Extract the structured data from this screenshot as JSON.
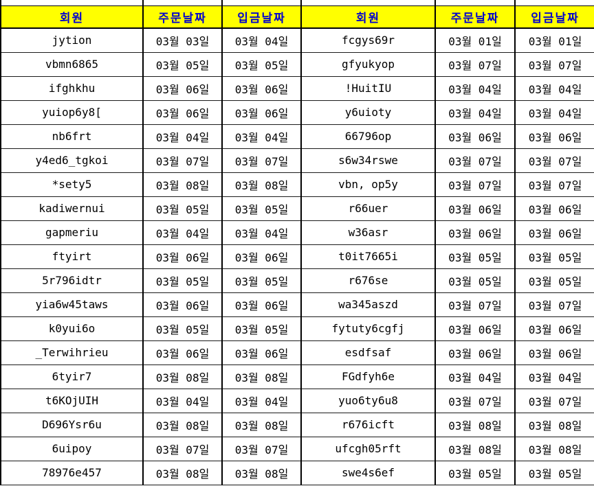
{
  "colors": {
    "header_bg": "#ffff00",
    "header_text": "#0000d0",
    "grid_border": "#000000",
    "cell_text": "#000000"
  },
  "table": {
    "columns": [
      {
        "key": "member_left",
        "label": "회원"
      },
      {
        "key": "order_left",
        "label": "주문날짜"
      },
      {
        "key": "deposit_left",
        "label": "입금날짜"
      },
      {
        "key": "member_right",
        "label": "회원"
      },
      {
        "key": "order_right",
        "label": "주문날짜"
      },
      {
        "key": "deposit_right",
        "label": "입금날짜"
      }
    ],
    "rows": [
      [
        "jytion",
        "03월 03일",
        "03월 04일",
        "fcgys69r",
        "03월 01일",
        "03월 01일"
      ],
      [
        "vbmn6865",
        "03월 05일",
        "03월 05일",
        "gfyukyop",
        "03월 07일",
        "03월 07일"
      ],
      [
        "ifghkhu",
        "03월 06일",
        "03월 06일",
        "!HuitIU",
        "03월 04일",
        "03월 04일"
      ],
      [
        "yuiop6y8[",
        "03월 06일",
        "03월 06일",
        "y6uioty",
        "03월 04일",
        "03월 04일"
      ],
      [
        "nb6frt",
        "03월 04일",
        "03월 04일",
        "66796op",
        "03월 06일",
        "03월 06일"
      ],
      [
        "y4ed6_tgkoi",
        "03월 07일",
        "03월 07일",
        "s6w34rswe",
        "03월 07일",
        "03월 07일"
      ],
      [
        "*sety5",
        "03월 08일",
        "03월 08일",
        "vbn, op5y",
        "03월 07일",
        "03월 07일"
      ],
      [
        "kadiwernui",
        "03월 05일",
        "03월 05일",
        "r66uer",
        "03월 06일",
        "03월 06일"
      ],
      [
        "gapmeriu",
        "03월 04일",
        "03월 04일",
        "w36asr",
        "03월 06일",
        "03월 06일"
      ],
      [
        "ftyirt",
        "03월 06일",
        "03월 06일",
        "t0it7665i",
        "03월 05일",
        "03월 05일"
      ],
      [
        "5r796idtr",
        "03월 05일",
        "03월 05일",
        "r676se",
        "03월 05일",
        "03월 05일"
      ],
      [
        "yia6w45taws",
        "03월 06일",
        "03월 06일",
        "wa345aszd",
        "03월 07일",
        "03월 07일"
      ],
      [
        "k0yui6o",
        "03월 05일",
        "03월 05일",
        "fytuty6cgfj",
        "03월 06일",
        "03월 06일"
      ],
      [
        "_Terwihrieu",
        "03월 06일",
        "03월 06일",
        "esdfsaf",
        "03월 06일",
        "03월 06일"
      ],
      [
        "6tyir7",
        "03월 08일",
        "03월 08일",
        "FGdfyh6e",
        "03월 04일",
        "03월 04일"
      ],
      [
        "t6KOjUIH",
        "03월 04일",
        "03월 04일",
        "yuo6ty6u8",
        "03월 07일",
        "03월 07일"
      ],
      [
        "D696Ysr6u",
        "03월 08일",
        "03월 08일",
        "r676icft",
        "03월 08일",
        "03월 08일"
      ],
      [
        "6uipoy",
        "03월 07일",
        "03월 07일",
        "ufcgh05rft",
        "03월 08일",
        "03월 08일"
      ],
      [
        "78976e457",
        "03월 08일",
        "03월 08일",
        "swe4s6ef",
        "03월 05일",
        "03월 05일"
      ]
    ]
  }
}
